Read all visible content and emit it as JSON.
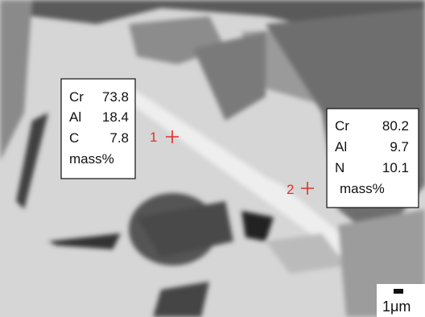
{
  "annotations": [
    {
      "lines": [
        {
          "element": "Cr",
          "value": "73.8"
        },
        {
          "element": "Al",
          "value": "18.4"
        },
        {
          "element": "C",
          "value": "7.8"
        }
      ],
      "unit": "mass%"
    },
    {
      "lines": [
        {
          "element": "Cr",
          "value": "80.2"
        },
        {
          "element": "Al",
          "value": "9.7"
        },
        {
          "element": "N",
          "value": "10.1"
        }
      ],
      "unit": "mass%"
    }
  ],
  "points": [
    "1",
    "2"
  ],
  "scale_bar": "1μm"
}
